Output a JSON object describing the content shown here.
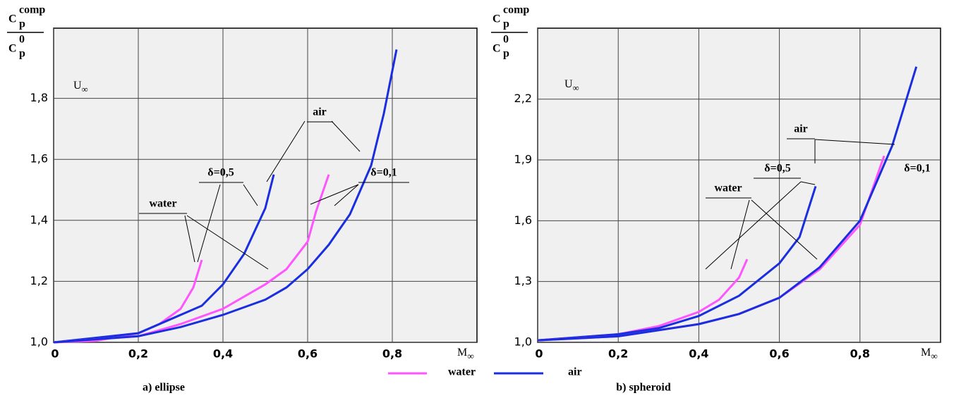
{
  "legend": [
    {
      "name": "water",
      "color": "#ff55ff"
    },
    {
      "name": "air",
      "color": "#1a2ee0"
    }
  ],
  "chart_data": [
    {
      "type": "line",
      "caption": "a) ellipse",
      "ylabel": {
        "numerator": {
          "base": "C",
          "sub": "p",
          "sup": "comp"
        },
        "denominator": {
          "base": "C",
          "sub": "p",
          "sup": "0"
        }
      },
      "xlabel": {
        "base": "M",
        "sub": "∞"
      },
      "flow_label": {
        "base": "U",
        "sub": "∞"
      },
      "annotations": [
        "air",
        "δ=0,5",
        "water",
        "δ=0,1"
      ],
      "xlim": [
        0,
        1
      ],
      "ylim": [
        1,
        2.03
      ],
      "xticks": [
        0,
        {
          "value": 0.2,
          "label": "0,2"
        },
        {
          "value": 0.4,
          "label": "0,4"
        },
        {
          "value": 0.6,
          "label": "0,6"
        },
        {
          "value": 0.8,
          "label": "0,8"
        }
      ],
      "yticks": [
        {
          "value": 1,
          "label": "1,0"
        },
        {
          "value": 1.2,
          "label": "1,2"
        },
        {
          "value": 1.4,
          "label": "1,4"
        },
        {
          "value": 1.6,
          "label": "1,6"
        },
        {
          "value": 1.8,
          "label": "1,8"
        }
      ],
      "grid": true,
      "series": [
        {
          "color": "#ff55ff",
          "x": [
            0,
            0.1,
            0.2,
            0.25,
            0.3,
            0.33,
            0.35
          ],
          "values": [
            1,
            1.005,
            1.03,
            1.06,
            1.11,
            1.18,
            1.27
          ]
        },
        {
          "color": "#1a2ee0",
          "x": [
            0,
            0.2,
            0.3,
            0.35,
            0.4,
            0.45,
            0.5,
            0.52
          ],
          "values": [
            1,
            1.03,
            1.09,
            1.12,
            1.19,
            1.29,
            1.44,
            1.55
          ]
        },
        {
          "color": "#ff55ff",
          "x": [
            0,
            0.2,
            0.3,
            0.4,
            0.5,
            0.55,
            0.6,
            0.62,
            0.65
          ],
          "values": [
            1,
            1.02,
            1.06,
            1.11,
            1.19,
            1.24,
            1.33,
            1.43,
            1.55
          ]
        },
        {
          "color": "#1a2ee0",
          "x": [
            0,
            0.2,
            0.3,
            0.4,
            0.5,
            0.55,
            0.6,
            0.65,
            0.7,
            0.75,
            0.78,
            0.81
          ],
          "values": [
            1,
            1.02,
            1.05,
            1.09,
            1.14,
            1.18,
            1.24,
            1.32,
            1.42,
            1.58,
            1.75,
            1.96
          ]
        }
      ]
    },
    {
      "type": "line",
      "caption": "b) spheroid",
      "ylabel": {
        "numerator": {
          "base": "C",
          "sub": "p",
          "sup": "comp"
        },
        "denominator": {
          "base": "C",
          "sub": "p",
          "sup": "0"
        }
      },
      "xlabel": {
        "base": "M",
        "sub": "∞"
      },
      "flow_label": {
        "base": "U",
        "sub": "∞"
      },
      "annotations": [
        "air",
        "δ=0,5",
        "water",
        "δ=0,1"
      ],
      "xlim": [
        0,
        1
      ],
      "ylim": [
        1,
        2.55
      ],
      "xticks": [
        0,
        {
          "value": 0.2,
          "label": "0,2"
        },
        {
          "value": 0.4,
          "label": "0,4"
        },
        {
          "value": 0.6,
          "label": "0,6"
        },
        {
          "value": 0.8,
          "label": "0,8"
        }
      ],
      "yticks": [
        {
          "value": 1,
          "label": "1,0"
        },
        {
          "value": 1.3,
          "label": "1,3"
        },
        {
          "value": 1.6,
          "label": "1,6"
        },
        {
          "value": 1.9,
          "label": "1,9"
        },
        {
          "value": 2.2,
          "label": "2,2"
        }
      ],
      "grid": true,
      "series": [
        {
          "color": "#ff55ff",
          "x": [
            0,
            0.2,
            0.3,
            0.4,
            0.45,
            0.5,
            0.52
          ],
          "values": [
            1.01,
            1.04,
            1.08,
            1.15,
            1.21,
            1.32,
            1.41
          ]
        },
        {
          "color": "#1a2ee0",
          "x": [
            0,
            0.2,
            0.3,
            0.4,
            0.5,
            0.6,
            0.65,
            0.69
          ],
          "values": [
            1.01,
            1.04,
            1.07,
            1.13,
            1.23,
            1.39,
            1.52,
            1.77
          ]
        },
        {
          "color": "#ff55ff",
          "x": [
            0,
            0.2,
            0.4,
            0.5,
            0.6,
            0.7,
            0.8,
            0.86
          ],
          "values": [
            1.01,
            1.03,
            1.09,
            1.14,
            1.22,
            1.36,
            1.58,
            1.92
          ]
        },
        {
          "color": "#1a2ee0",
          "x": [
            0,
            0.2,
            0.4,
            0.5,
            0.6,
            0.7,
            0.8,
            0.88,
            0.94
          ],
          "values": [
            1.01,
            1.03,
            1.09,
            1.14,
            1.22,
            1.37,
            1.6,
            1.97,
            2.36
          ]
        }
      ]
    }
  ]
}
